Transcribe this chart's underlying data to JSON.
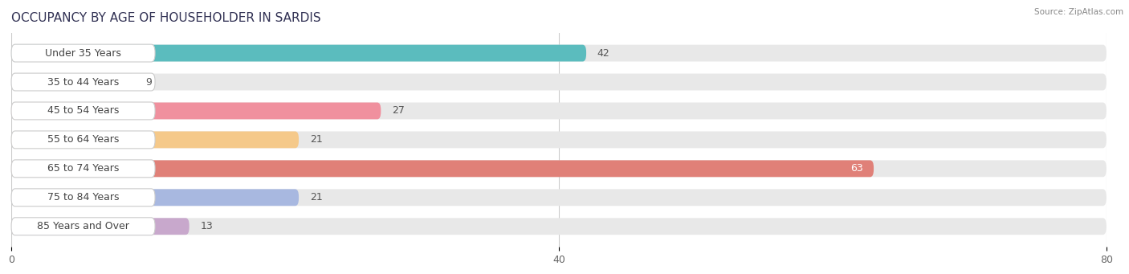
{
  "title": "OCCUPANCY BY AGE OF HOUSEHOLDER IN SARDIS",
  "source": "Source: ZipAtlas.com",
  "categories": [
    "Under 35 Years",
    "35 to 44 Years",
    "45 to 54 Years",
    "55 to 64 Years",
    "65 to 74 Years",
    "75 to 84 Years",
    "85 Years and Over"
  ],
  "values": [
    42,
    9,
    27,
    21,
    63,
    21,
    13
  ],
  "bar_colors": [
    "#5bbcbe",
    "#aaaad4",
    "#f0909e",
    "#f5c98a",
    "#e08078",
    "#a8b8e0",
    "#c8a8cc"
  ],
  "xlim_min": 0,
  "xlim_max": 80,
  "xticks": [
    0,
    40,
    80
  ],
  "title_fontsize": 11,
  "label_fontsize": 9,
  "value_fontsize": 9,
  "tick_fontsize": 9,
  "background_color": "#ffffff",
  "bar_track_color": "#e8e8e8",
  "label_pill_color": "#ffffff",
  "bar_height": 0.58,
  "value_color_inside": "#ffffff",
  "value_color_outside": "#555555",
  "label_text_color": "#444444",
  "grid_color": "#cccccc",
  "title_color": "#333355"
}
